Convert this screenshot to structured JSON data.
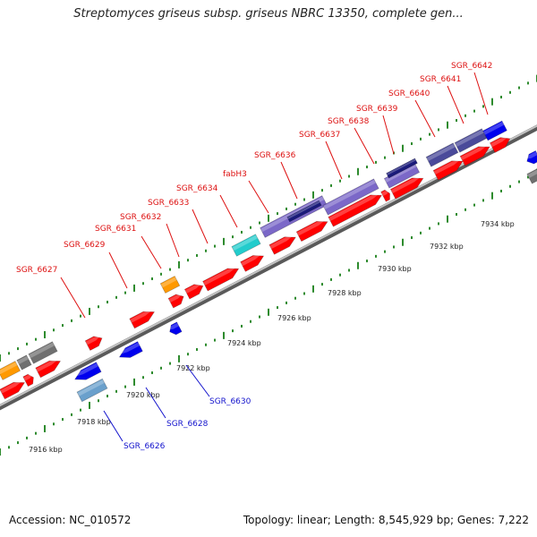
{
  "title": "Streptomyces griseus subsp. griseus NBRC 13350, complete gen...",
  "footer": {
    "accession": "Accession: NC_010572",
    "summary": "Topology: linear; Length: 8,545,929 bp; Genes: 7,222"
  },
  "colors": {
    "backbone": "#808080",
    "ruler_dot": "#2e8b2e",
    "label_top": "#dd1111",
    "label_bottom": "#1111cc",
    "gene_red": "#ff0000",
    "gene_blue": "#0000ee",
    "gene_navy": "#1a1a7a",
    "gene_purple": "#7b68c8",
    "gene_slate": "#4a4a9a",
    "gene_cyan": "#22cccc",
    "gene_orange": "#ff9900",
    "gene_gray": "#707070",
    "gene_steel": "#6aa0cc"
  },
  "ticks": [
    "7916 kbp",
    "7918 kbp",
    "7920 kbp",
    "7922 kbp",
    "7924 kbp",
    "7926 kbp",
    "7928 kbp",
    "7930 kbp",
    "7932 kbp",
    "7934 kbp"
  ],
  "top_labels": [
    "SGR_6627",
    "SGR_6629",
    "SGR_6631",
    "SGR_6632",
    "SGR_6633",
    "SGR_6634",
    "fabH3",
    "SGR_6636",
    "SGR_6637",
    "SGR_6638",
    "SGR_6639",
    "SGR_6640",
    "SGR_6641",
    "SGR_6642"
  ],
  "bottom_labels": [
    "SGR_6626",
    "SGR_6628",
    "SGR_6630"
  ]
}
